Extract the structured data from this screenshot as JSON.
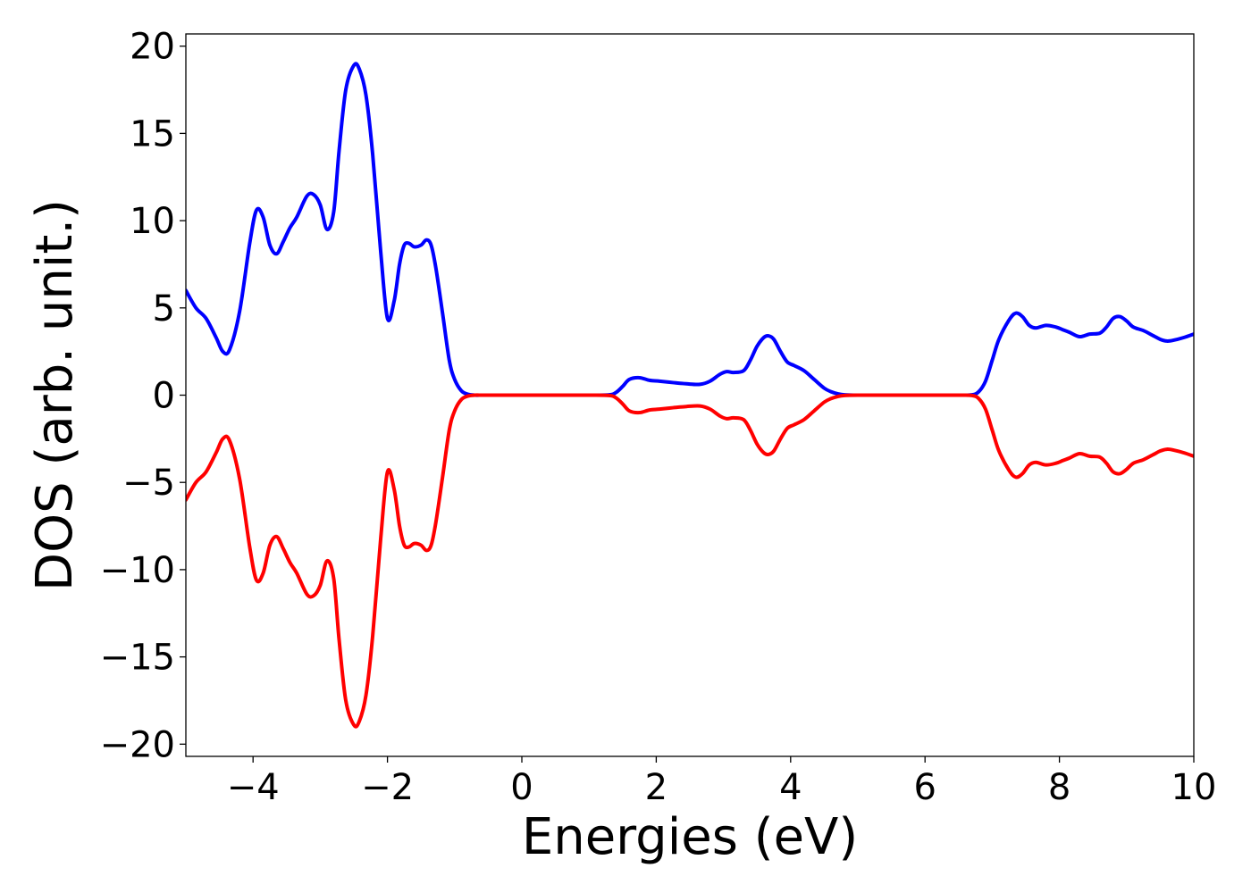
{
  "chart_data": {
    "type": "line",
    "title": "",
    "xlabel": "Energies (eV)",
    "ylabel": "DOS (arb. unit.)",
    "xlim": [
      -5,
      10
    ],
    "ylim": [
      -20.7,
      20.7
    ],
    "grid": false,
    "legend": "none",
    "x_ticks": [
      -4,
      -2,
      0,
      2,
      4,
      6,
      8,
      10
    ],
    "y_ticks": [
      -20,
      -15,
      -10,
      -5,
      0,
      5,
      10,
      15,
      20
    ],
    "x_tick_labels": [
      "−4",
      "−2",
      "0",
      "2",
      "4",
      "6",
      "8",
      "10"
    ],
    "y_tick_labels": [
      "−20",
      "−15",
      "−10",
      "−5",
      "0",
      "5",
      "10",
      "15",
      "20"
    ],
    "series": [
      {
        "color": "#0000ff",
        "x": [
          -5.0,
          -4.85,
          -4.7,
          -4.55,
          -4.45,
          -4.35,
          -4.2,
          -4.05,
          -3.95,
          -3.85,
          -3.75,
          -3.65,
          -3.55,
          -3.45,
          -3.35,
          -3.2,
          -3.1,
          -3.0,
          -2.9,
          -2.8,
          -2.72,
          -2.62,
          -2.5,
          -2.42,
          -2.32,
          -2.22,
          -2.1,
          -2.0,
          -1.9,
          -1.82,
          -1.75,
          -1.68,
          -1.6,
          -1.5,
          -1.42,
          -1.35,
          -1.28,
          -1.18,
          -1.08,
          -1.0,
          -0.9,
          -0.8,
          -0.7,
          -0.6,
          -0.5,
          -0.3,
          0.0,
          0.5,
          1.0,
          1.3,
          1.4,
          1.5,
          1.6,
          1.75,
          1.9,
          2.05,
          2.25,
          2.45,
          2.65,
          2.8,
          2.95,
          3.05,
          3.15,
          3.3,
          3.4,
          3.5,
          3.6,
          3.67,
          3.75,
          3.85,
          3.95,
          4.05,
          4.2,
          4.35,
          4.5,
          4.6,
          4.7,
          4.8,
          5.0,
          5.5,
          6.0,
          6.5,
          6.7,
          6.8,
          6.9,
          7.0,
          7.1,
          7.25,
          7.35,
          7.45,
          7.55,
          7.65,
          7.8,
          7.95,
          8.05,
          8.15,
          8.3,
          8.45,
          8.6,
          8.7,
          8.8,
          8.9,
          9.0,
          9.1,
          9.25,
          9.4,
          9.5,
          9.6,
          9.7,
          9.85,
          10.0
        ],
        "y": [
          6.0,
          5.0,
          4.4,
          3.3,
          2.5,
          2.6,
          4.8,
          8.7,
          10.6,
          10.2,
          8.6,
          8.1,
          8.8,
          9.6,
          10.2,
          11.4,
          11.5,
          10.9,
          9.5,
          10.5,
          14.0,
          17.5,
          18.9,
          18.7,
          17.2,
          13.8,
          8.2,
          4.4,
          5.4,
          7.5,
          8.6,
          8.7,
          8.5,
          8.6,
          8.9,
          8.6,
          7.3,
          4.7,
          2.0,
          0.9,
          0.25,
          0.05,
          0.0,
          0.0,
          0.0,
          0.0,
          0.0,
          0.0,
          0.0,
          0.02,
          0.15,
          0.5,
          0.9,
          1.0,
          0.85,
          0.8,
          0.72,
          0.65,
          0.62,
          0.8,
          1.2,
          1.35,
          1.3,
          1.4,
          2.0,
          2.8,
          3.3,
          3.4,
          3.2,
          2.5,
          1.9,
          1.7,
          1.4,
          0.9,
          0.4,
          0.2,
          0.08,
          0.02,
          0.0,
          0.0,
          0.0,
          0.0,
          0.02,
          0.2,
          0.8,
          2.0,
          3.2,
          4.3,
          4.7,
          4.5,
          4.0,
          3.85,
          4.0,
          3.9,
          3.75,
          3.6,
          3.35,
          3.5,
          3.55,
          3.9,
          4.4,
          4.5,
          4.25,
          3.9,
          3.7,
          3.4,
          3.2,
          3.1,
          3.15,
          3.3,
          3.5
        ]
      },
      {
        "color": "#ff0000",
        "x": [
          -5.0,
          -4.85,
          -4.7,
          -4.55,
          -4.45,
          -4.35,
          -4.2,
          -4.05,
          -3.95,
          -3.85,
          -3.75,
          -3.65,
          -3.55,
          -3.45,
          -3.35,
          -3.2,
          -3.1,
          -3.0,
          -2.9,
          -2.8,
          -2.72,
          -2.62,
          -2.5,
          -2.42,
          -2.32,
          -2.22,
          -2.1,
          -2.0,
          -1.9,
          -1.82,
          -1.75,
          -1.68,
          -1.6,
          -1.5,
          -1.42,
          -1.35,
          -1.28,
          -1.18,
          -1.08,
          -1.0,
          -0.9,
          -0.8,
          -0.7,
          -0.6,
          -0.5,
          -0.3,
          0.0,
          0.5,
          1.0,
          1.3,
          1.4,
          1.5,
          1.6,
          1.75,
          1.9,
          2.05,
          2.25,
          2.45,
          2.65,
          2.8,
          2.95,
          3.05,
          3.15,
          3.3,
          3.4,
          3.5,
          3.6,
          3.67,
          3.75,
          3.85,
          3.95,
          4.05,
          4.2,
          4.35,
          4.5,
          4.6,
          4.7,
          4.8,
          5.0,
          5.5,
          6.0,
          6.5,
          6.7,
          6.8,
          6.9,
          7.0,
          7.1,
          7.25,
          7.35,
          7.45,
          7.55,
          7.65,
          7.8,
          7.95,
          8.05,
          8.15,
          8.3,
          8.45,
          8.6,
          8.7,
          8.8,
          8.9,
          9.0,
          9.1,
          9.25,
          9.4,
          9.5,
          9.6,
          9.7,
          9.85,
          10.0
        ],
        "y": [
          -6.0,
          -5.0,
          -4.4,
          -3.3,
          -2.5,
          -2.6,
          -4.8,
          -8.7,
          -10.6,
          -10.2,
          -8.6,
          -8.1,
          -8.8,
          -9.6,
          -10.2,
          -11.4,
          -11.5,
          -10.9,
          -9.5,
          -10.5,
          -14.0,
          -17.5,
          -18.9,
          -18.7,
          -17.2,
          -13.8,
          -8.2,
          -4.4,
          -5.4,
          -7.5,
          -8.6,
          -8.7,
          -8.5,
          -8.6,
          -8.9,
          -8.6,
          -7.3,
          -4.7,
          -2.0,
          -0.9,
          -0.25,
          -0.05,
          0.0,
          0.0,
          0.0,
          0.0,
          0.0,
          0.0,
          0.0,
          -0.02,
          -0.15,
          -0.5,
          -0.9,
          -1.0,
          -0.85,
          -0.8,
          -0.72,
          -0.65,
          -0.62,
          -0.8,
          -1.2,
          -1.35,
          -1.3,
          -1.4,
          -2.0,
          -2.8,
          -3.3,
          -3.4,
          -3.2,
          -2.5,
          -1.9,
          -1.7,
          -1.4,
          -0.9,
          -0.4,
          -0.2,
          -0.08,
          -0.02,
          0.0,
          0.0,
          0.0,
          0.0,
          -0.02,
          -0.2,
          -0.8,
          -2.0,
          -3.2,
          -4.3,
          -4.7,
          -4.5,
          -4.0,
          -3.85,
          -4.0,
          -3.9,
          -3.75,
          -3.6,
          -3.35,
          -3.5,
          -3.55,
          -3.9,
          -4.4,
          -4.5,
          -4.25,
          -3.9,
          -3.7,
          -3.4,
          -3.2,
          -3.1,
          -3.15,
          -3.3,
          -3.5
        ]
      }
    ]
  }
}
